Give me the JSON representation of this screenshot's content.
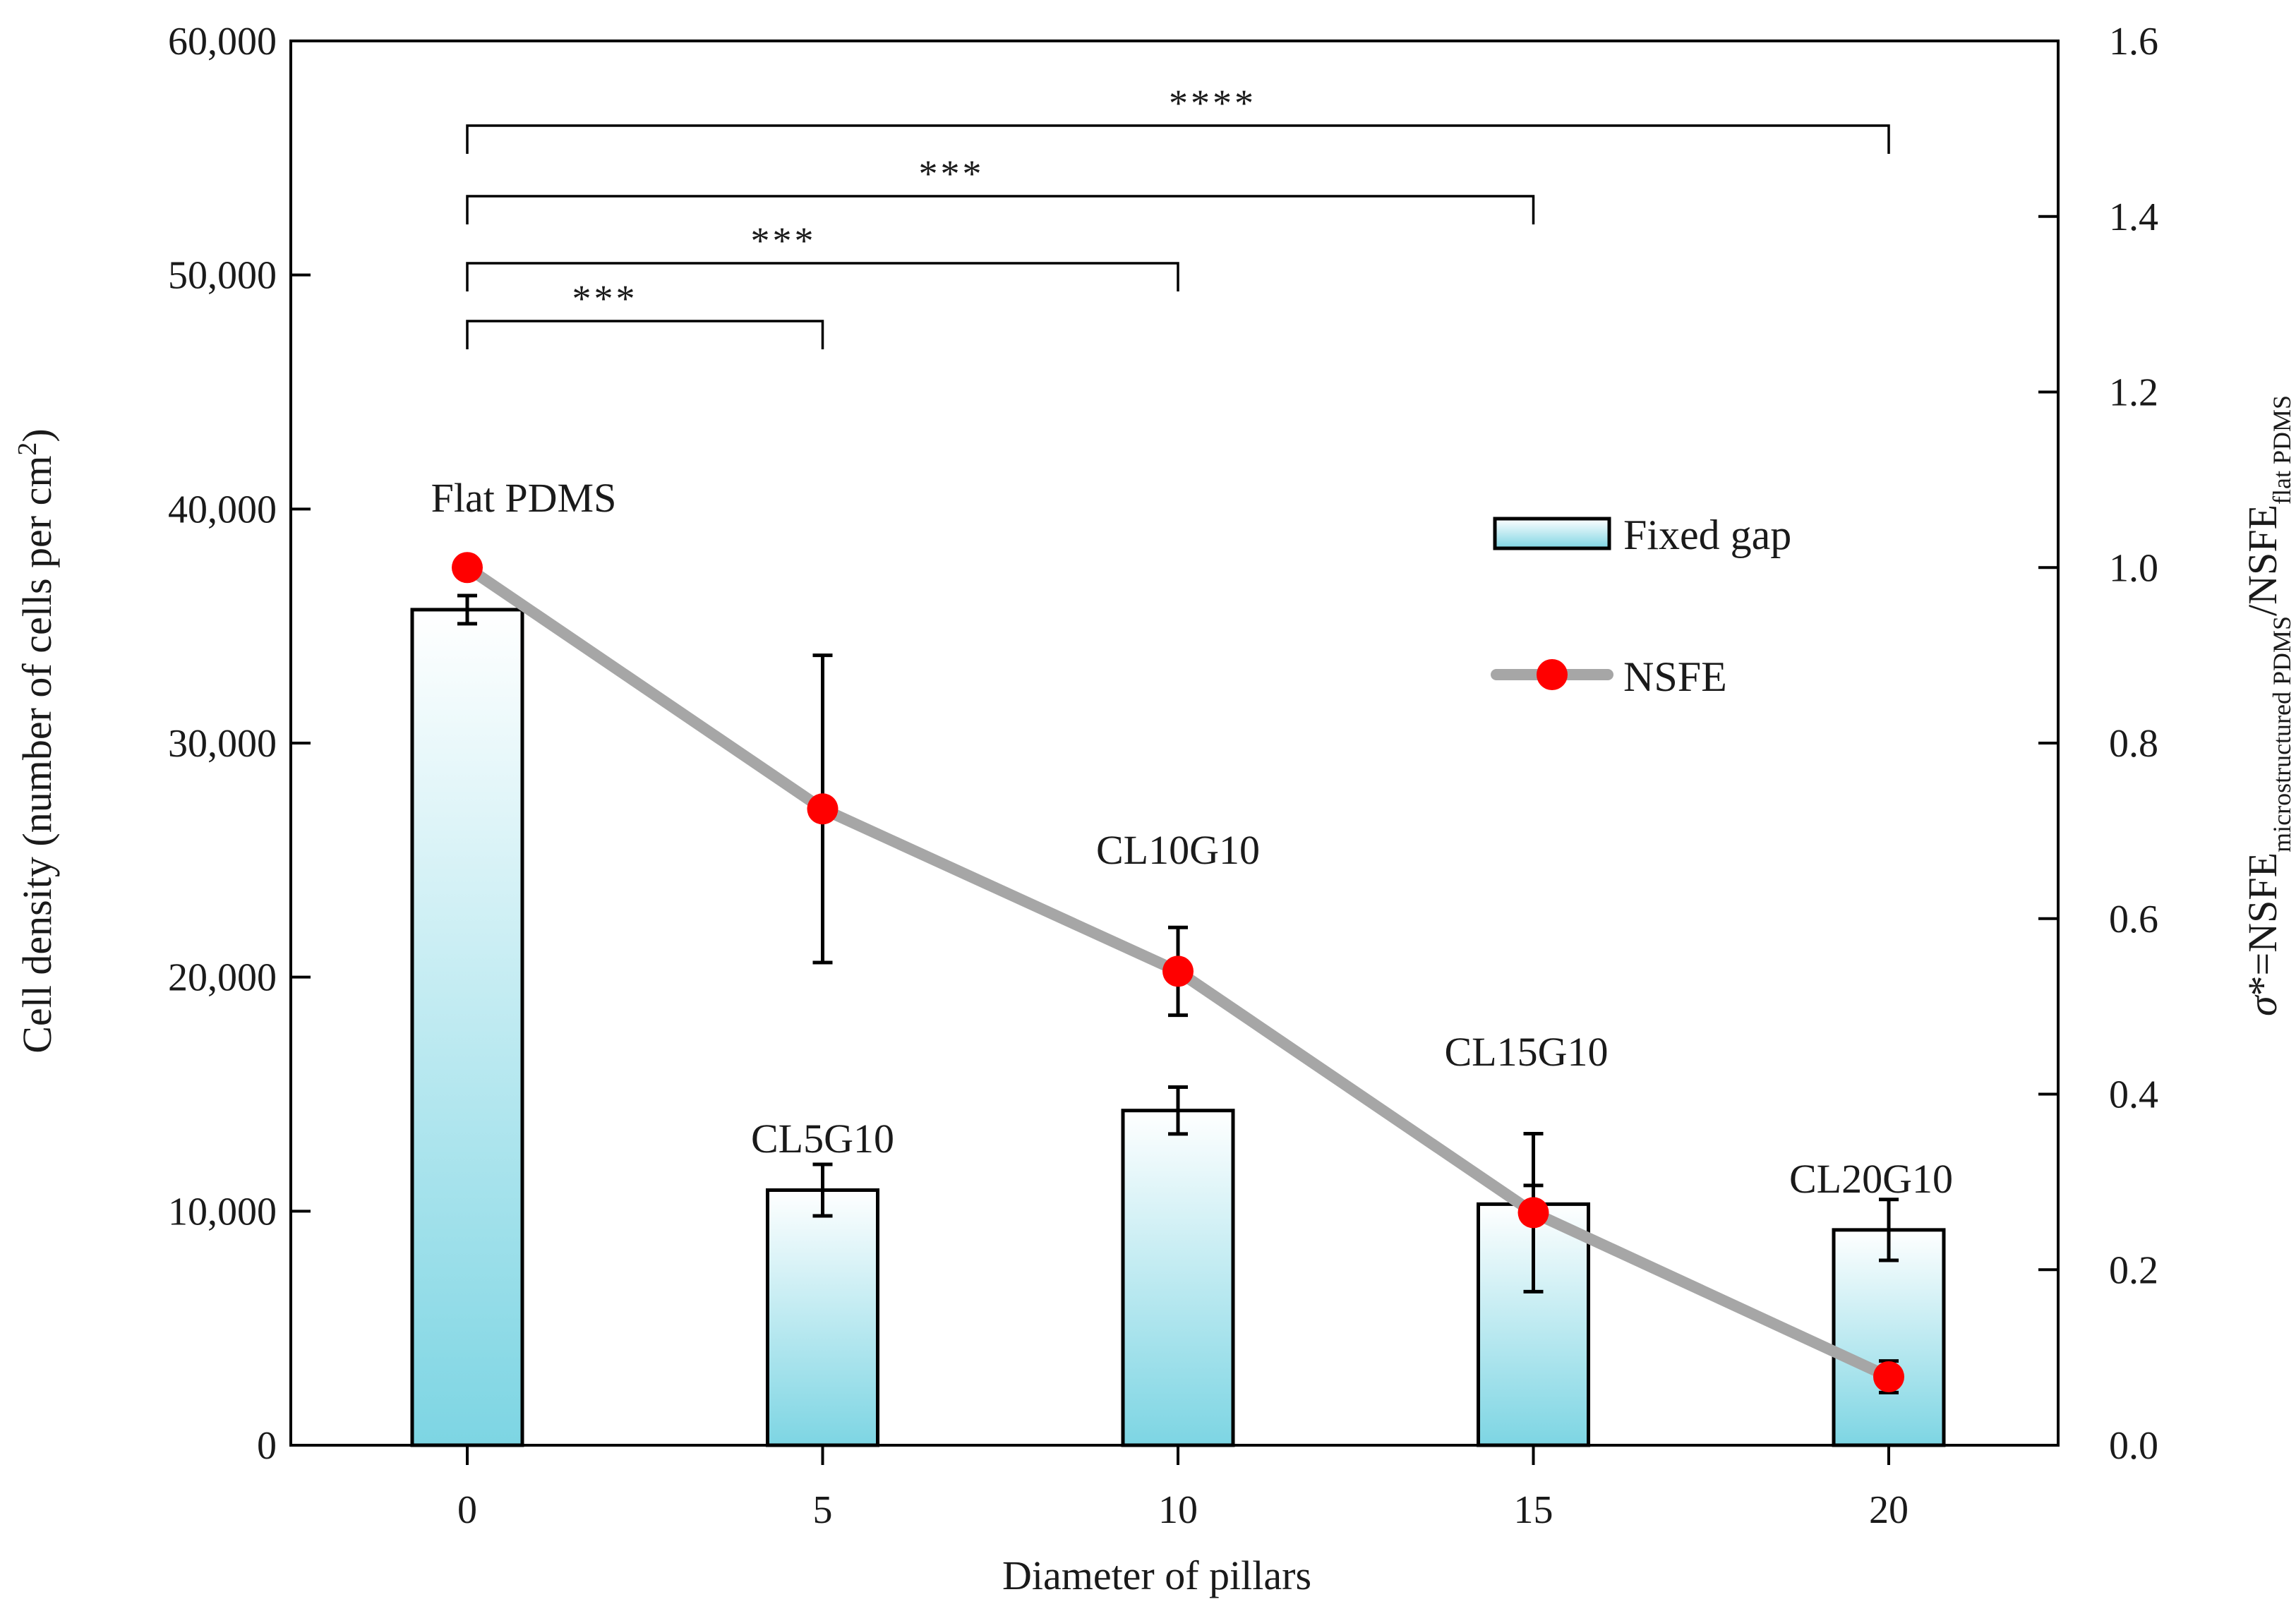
{
  "chart_data": {
    "type": "bar",
    "x_title": "Diameter  of pillars",
    "y_left_title": "Cell density (number of cells per cm",
    "y_left_title_sup": "2",
    "y_left_title_end": ")",
    "y_right_title_parts": {
      "sigma": "σ",
      "eq": "*=NSFE",
      "sub1": "microstructured PDMS",
      "mid": "/NSFE",
      "sub2": "flat PDMS"
    },
    "categories": [
      "0",
      "5",
      "10",
      "15",
      "20"
    ],
    "x_values": [
      0,
      5,
      10,
      15,
      20
    ],
    "y_left_ticks": [
      "0",
      "10,000",
      "20,000",
      "30,000",
      "40,000",
      "50,000",
      "60,000"
    ],
    "y_left_range": [
      0,
      60000
    ],
    "y_right_ticks": [
      "0.0",
      "0.2",
      "0.4",
      "0.6",
      "0.8",
      "1.0",
      "1.2",
      "1.4",
      "1.6"
    ],
    "y_right_range": [
      0,
      1.6
    ],
    "series": [
      {
        "name": "Fixed gap",
        "kind": "bar",
        "axis": "left",
        "values": [
          35700,
          10900,
          14300,
          10300,
          9200
        ],
        "errors": [
          600,
          1100,
          1000,
          800,
          1300
        ],
        "labels": [
          "Flat PDMS",
          "CL5G10",
          "CL10G10",
          "CL15G10",
          "CL20G10"
        ]
      },
      {
        "name": "NSFE",
        "kind": "line",
        "axis": "right",
        "values": [
          1.0,
          0.725,
          0.54,
          0.265,
          0.078
        ],
        "errors": [
          0,
          0.175,
          0.05,
          0.09,
          0.018
        ]
      }
    ],
    "significance": [
      {
        "from": 0,
        "to": 5,
        "label": "***"
      },
      {
        "from": 0,
        "to": 10,
        "label": "***"
      },
      {
        "from": 0,
        "to": 15,
        "label": "***"
      },
      {
        "from": 0,
        "to": 20,
        "label": "****"
      }
    ],
    "legend": {
      "position": "top-right",
      "entries": [
        "Fixed gap",
        "NSFE"
      ]
    },
    "colors": {
      "bar_top": "#ffffff",
      "bar_bottom": "#7dd5e3",
      "line": "#a6a6a6",
      "marker": "#ff0000"
    }
  }
}
